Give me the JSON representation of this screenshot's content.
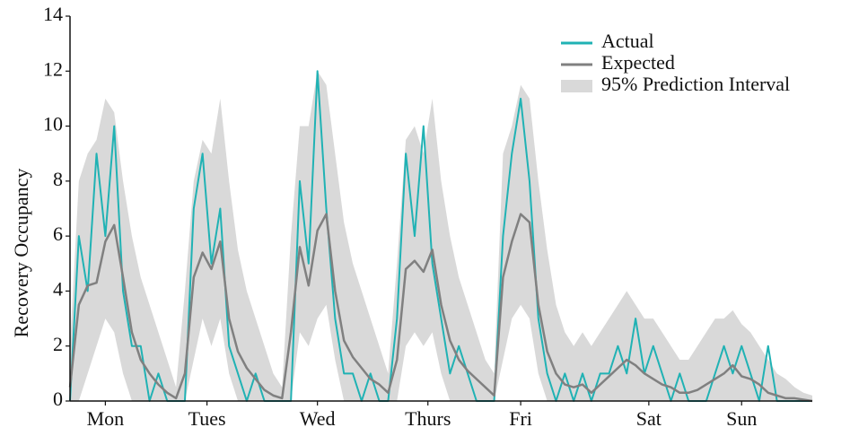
{
  "chart_data": {
    "type": "line",
    "ylabel": "Recovery Occupancy",
    "x": [
      0,
      2,
      4,
      6,
      8,
      10,
      12,
      14,
      16,
      18,
      20,
      22,
      24,
      26,
      28,
      30,
      32,
      34,
      36,
      38,
      40,
      42,
      44,
      46,
      48,
      50,
      52,
      54,
      56,
      58,
      60,
      62,
      64,
      66,
      68,
      70,
      72,
      74,
      76,
      78,
      80,
      82,
      84,
      86,
      88,
      90,
      92,
      94,
      96,
      98,
      100,
      102,
      104,
      106,
      108,
      110,
      112,
      114,
      116,
      118,
      120,
      122,
      124,
      126,
      128,
      130,
      132,
      134,
      136,
      138,
      140,
      142,
      144,
      146,
      148,
      150,
      152,
      154,
      156,
      158,
      160,
      162,
      164,
      166,
      168
    ],
    "xlim": [
      0,
      168
    ],
    "xticks": [
      {
        "value": 8,
        "label": "Mon"
      },
      {
        "value": 31,
        "label": "Tues"
      },
      {
        "value": 56,
        "label": "Wed"
      },
      {
        "value": 81,
        "label": "Thurs"
      },
      {
        "value": 102,
        "label": "Fri"
      },
      {
        "value": 131,
        "label": "Sat"
      },
      {
        "value": 152,
        "label": "Sun"
      }
    ],
    "ylim": [
      0,
      14
    ],
    "yticks": [
      0,
      2,
      4,
      6,
      8,
      10,
      12,
      14
    ],
    "legend": "upper right",
    "interval": {
      "name": "95% Prediction Interval",
      "color": "#d9d9d9",
      "lower": [
        0,
        0,
        1,
        2,
        3,
        2.5,
        1,
        0,
        0,
        0,
        0,
        0,
        0,
        0,
        1.5,
        3,
        2,
        3,
        1,
        0,
        0,
        0,
        0,
        0,
        0,
        0,
        2.5,
        2,
        3,
        3.5,
        1.5,
        0,
        0,
        0,
        0,
        0,
        0,
        0,
        2,
        2.5,
        2,
        2.5,
        1,
        0,
        0,
        0,
        0,
        0,
        0,
        1.5,
        3,
        3.5,
        3,
        1,
        0,
        0,
        0,
        0,
        0,
        0,
        0,
        0,
        0,
        0,
        0,
        0,
        0,
        0,
        0,
        0,
        0,
        0,
        0,
        0,
        0,
        0,
        0,
        0,
        0,
        0,
        0,
        0,
        0,
        0,
        0
      ],
      "upper": [
        2,
        8,
        9,
        9.5,
        11,
        10.5,
        8,
        6,
        4.5,
        3.5,
        2.5,
        1.5,
        0.5,
        4,
        8,
        9.5,
        9,
        11,
        8,
        5.5,
        4,
        3,
        2,
        1,
        0.5,
        6,
        10,
        10,
        12,
        11.5,
        9,
        6.5,
        5,
        4,
        3,
        2,
        1,
        5,
        9.5,
        10,
        9,
        11,
        8,
        6,
        4.5,
        3.5,
        2.5,
        1.5,
        1,
        9,
        10,
        11.5,
        11,
        8,
        5.5,
        3.5,
        2.5,
        2,
        2.5,
        2,
        2.5,
        3,
        3.5,
        4,
        3.5,
        3,
        3,
        2.5,
        2,
        1.5,
        1.5,
        2,
        2.5,
        3,
        3,
        3.3,
        2.8,
        2.5,
        2,
        1.5,
        1,
        0.8,
        0.5,
        0.3,
        0.2
      ]
    },
    "series": [
      {
        "name": "Actual",
        "color": "#20b2b4",
        "values": [
          0,
          6,
          4,
          9,
          6,
          10,
          4,
          2,
          2,
          0,
          1,
          0,
          0,
          0,
          7,
          9,
          5,
          7,
          2,
          1,
          0,
          1,
          0,
          0,
          0,
          0,
          8,
          5,
          12,
          7,
          3,
          1,
          1,
          0,
          1,
          0,
          0,
          3,
          9,
          6,
          10,
          5,
          3,
          1,
          2,
          1,
          0,
          0,
          0,
          6,
          9,
          11,
          8,
          3,
          1,
          0,
          1,
          0,
          1,
          0,
          1,
          1,
          2,
          1,
          3,
          1,
          2,
          1,
          0,
          1,
          0,
          0,
          0,
          1,
          2,
          1,
          2,
          1,
          0,
          2,
          0,
          0,
          0,
          0,
          0
        ]
      },
      {
        "name": "Expected",
        "color": "#808080",
        "values": [
          0.5,
          3.5,
          4.2,
          4.3,
          5.8,
          6.4,
          4.5,
          2.5,
          1.5,
          1.0,
          0.6,
          0.3,
          0.1,
          1.0,
          4.5,
          5.4,
          4.8,
          5.8,
          3.0,
          1.8,
          1.2,
          0.8,
          0.4,
          0.2,
          0.1,
          2.5,
          5.6,
          4.2,
          6.2,
          6.8,
          4.0,
          2.2,
          1.6,
          1.2,
          0.8,
          0.6,
          0.3,
          1.5,
          4.8,
          5.1,
          4.7,
          5.5,
          3.5,
          2.2,
          1.5,
          1.1,
          0.8,
          0.5,
          0.2,
          4.5,
          5.8,
          6.8,
          6.5,
          3.5,
          1.8,
          1.0,
          0.6,
          0.5,
          0.6,
          0.3,
          0.6,
          0.9,
          1.2,
          1.5,
          1.3,
          1.0,
          0.8,
          0.6,
          0.5,
          0.3,
          0.3,
          0.4,
          0.6,
          0.8,
          1.0,
          1.3,
          0.9,
          0.8,
          0.6,
          0.3,
          0.2,
          0.1,
          0.1,
          0.05,
          0.0
        ]
      }
    ]
  }
}
